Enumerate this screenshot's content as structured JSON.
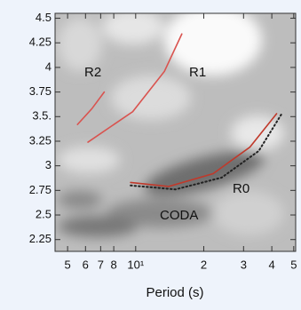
{
  "chart_data": {
    "type": "line",
    "xlabel": "Period (s)",
    "xscale": "log",
    "xlim": [
      0.44,
      5.1
    ],
    "ylim": [
      2.13,
      4.55
    ],
    "xticks": [
      {
        "value": 0.5,
        "label": "5"
      },
      {
        "value": 0.6,
        "label": "6"
      },
      {
        "value": 0.7,
        "label": "7"
      },
      {
        "value": 0.8,
        "label": "8"
      },
      {
        "value": 1,
        "label": "10¹"
      },
      2,
      3,
      4,
      5
    ],
    "yticks": [
      2.25,
      2.5,
      2.75,
      3,
      3.25,
      {
        "value": 3.5,
        "label": "3.5."
      },
      3.75,
      4,
      4.25,
      4.5
    ],
    "annotations": [
      "R2",
      "R1",
      "R0",
      "CODA"
    ],
    "series": [
      {
        "color": "#d9534f",
        "style": "solid",
        "x": [
          0.553,
          0.64,
          0.726
        ],
        "values": [
          3.42,
          3.58,
          3.75
        ]
      },
      {
        "color": "#d9534f",
        "style": "solid",
        "x": [
          0.615,
          0.97,
          1.34,
          1.6
        ],
        "values": [
          3.24,
          3.55,
          3.96,
          4.34
        ]
      },
      {
        "color": "#c0392b",
        "style": "solid",
        "x": [
          0.95,
          1.4,
          2.2,
          3.2,
          4.2
        ],
        "values": [
          2.83,
          2.79,
          2.92,
          3.19,
          3.53
        ]
      },
      {
        "color": "#222222",
        "style": "dotted",
        "x": [
          0.95,
          1.5,
          2.4,
          3.5,
          4.4
        ],
        "values": [
          2.8,
          2.76,
          2.88,
          3.15,
          3.52
        ]
      }
    ]
  }
}
